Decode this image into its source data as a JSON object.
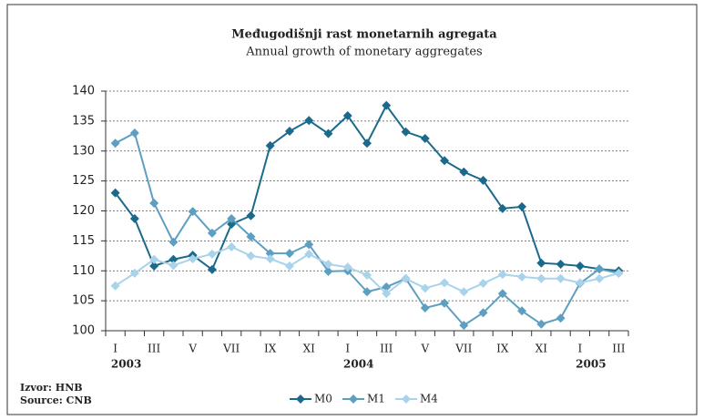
{
  "chart_data": {
    "type": "line",
    "title": "Međugodišnji rast monetarnih agregata",
    "subtitle": "Annual growth of monetary aggregates",
    "categories": [
      "I",
      null,
      "III",
      null,
      "V",
      null,
      "VII",
      null,
      "IX",
      null,
      "XI",
      null,
      "I",
      null,
      "III",
      null,
      "V",
      null,
      "VII",
      null,
      "IX",
      null,
      "XI",
      null,
      "I",
      null,
      "III"
    ],
    "years": [
      {
        "label": "2003",
        "at": 0
      },
      {
        "label": "2004",
        "at": 12
      },
      {
        "label": "2005",
        "at": 24
      }
    ],
    "series": [
      {
        "name": "M0",
        "color": "#1b6a8c",
        "values": [
          123,
          118.7,
          110.8,
          111.9,
          112.6,
          110.2,
          117.8,
          119.2,
          130.9,
          133.3,
          135.1,
          132.9,
          135.9,
          131.3,
          137.6,
          133.2,
          132.1,
          128.4,
          126.5,
          125.1,
          120.4,
          120.7,
          111.3,
          111.1,
          110.8,
          110.3,
          110.0
        ]
      },
      {
        "name": "M1",
        "color": "#5d9fc0",
        "values": [
          131.3,
          133.0,
          121.3,
          114.8,
          119.9,
          116.3,
          118.7,
          115.7,
          112.9,
          112.9,
          114.4,
          109.9,
          110.0,
          106.5,
          107.3,
          108.7,
          103.8,
          104.6,
          100.9,
          103.0,
          106.2,
          103.3,
          101.1,
          102.1,
          107.9,
          110.3,
          109.6
        ]
      },
      {
        "name": "M4",
        "color": "#a9d3ea",
        "values": [
          107.5,
          109.6,
          111.9,
          110.9,
          112.0,
          112.8,
          114.0,
          112.5,
          112.0,
          110.8,
          112.8,
          111.1,
          110.6,
          109.3,
          106.2,
          108.7,
          107.1,
          108.0,
          106.5,
          107.9,
          109.4,
          109.0,
          108.7,
          108.7,
          108.0,
          108.7,
          109.6
        ]
      }
    ],
    "ylim": [
      100,
      140
    ],
    "yticks": [
      100,
      105,
      110,
      115,
      120,
      125,
      130,
      135,
      140
    ],
    "grid": true,
    "source": [
      "Izvor: HNB",
      "Source: CNB"
    ]
  }
}
